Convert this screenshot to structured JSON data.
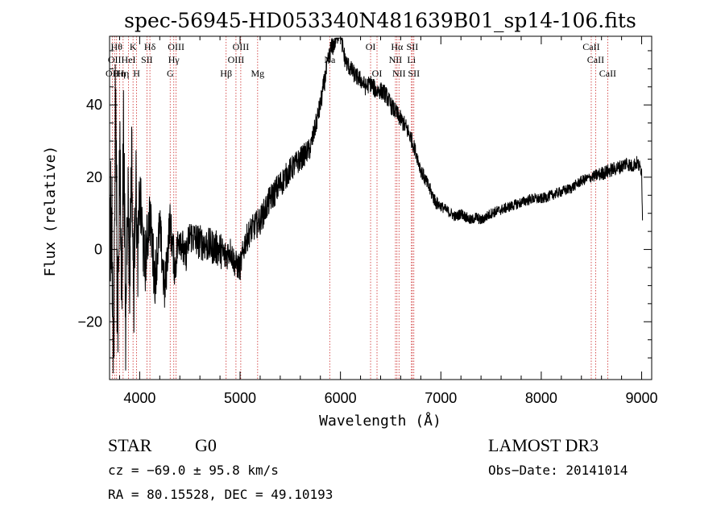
{
  "chart_data": {
    "type": "line",
    "title": "spec-56945-HD053340N481639B01_sp14-106.fits",
    "xlabel": "Wavelength (Å)",
    "ylabel": "Flux (relative)",
    "xlim": [
      3700,
      9100
    ],
    "ylim": [
      -36,
      59
    ],
    "xticks": [
      4000,
      5000,
      6000,
      7000,
      8000,
      9000
    ],
    "xtick_labels": [
      "4000",
      "5000",
      "6000",
      "7000",
      "8000",
      "9000"
    ],
    "yticks": [
      -20,
      0,
      20,
      40
    ],
    "ytick_labels": [
      "−20",
      "0",
      "20",
      "40"
    ],
    "grid": false,
    "series": [
      {
        "name": "flux",
        "x": [
          3700,
          3720,
          3740,
          3760,
          3780,
          3800,
          3820,
          3840,
          3860,
          3880,
          3900,
          3920,
          3940,
          3960,
          3980,
          4000,
          4050,
          4100,
          4150,
          4200,
          4250,
          4300,
          4350,
          4400,
          4450,
          4500,
          4600,
          4700,
          4800,
          4850,
          4900,
          4950,
          5000,
          5050,
          5100,
          5200,
          5300,
          5400,
          5500,
          5600,
          5700,
          5750,
          5800,
          5850,
          5900,
          5950,
          6000,
          6020,
          6050,
          6100,
          6150,
          6200,
          6250,
          6300,
          6350,
          6400,
          6450,
          6500,
          6550,
          6600,
          6650,
          6700,
          6750,
          6800,
          6850,
          6900,
          6950,
          7000,
          7050,
          7100,
          7150,
          7200,
          7250,
          7300,
          7350,
          7400,
          7450,
          7500,
          7600,
          7700,
          7800,
          7900,
          8000,
          8100,
          8200,
          8300,
          8400,
          8500,
          8600,
          8700,
          8800,
          8850,
          8900,
          8950,
          9000,
          9010
        ],
        "y": [
          0,
          12,
          -30,
          45,
          -20,
          25,
          -10,
          35,
          -24,
          20,
          -8,
          28,
          -15,
          22,
          -5,
          15,
          -5,
          10,
          -8,
          6,
          -12,
          8,
          -5,
          5,
          -3,
          4,
          2,
          1,
          0,
          -2,
          0,
          -4,
          -5,
          2,
          5,
          8,
          14,
          18,
          22,
          25,
          28,
          34,
          40,
          48,
          55,
          58,
          62,
          56,
          52,
          50,
          48,
          47,
          45,
          46,
          44,
          44,
          43,
          40,
          38,
          36,
          34,
          31,
          27,
          22,
          19,
          16,
          13,
          12,
          11,
          10,
          9,
          10,
          9,
          8,
          9,
          8,
          9,
          10,
          11,
          12,
          13,
          14,
          14,
          15,
          16,
          17,
          19,
          20,
          21,
          22,
          23,
          24,
          23,
          24,
          22,
          5
        ],
        "noise": [
          18,
          18,
          20,
          20,
          20,
          18,
          18,
          16,
          16,
          14,
          14,
          12,
          12,
          12,
          10,
          10,
          9,
          8,
          8,
          7,
          7,
          6,
          6,
          6,
          5,
          5,
          5,
          5,
          5,
          5,
          4,
          4,
          4,
          4,
          4,
          4,
          4,
          4,
          3.5,
          3.5,
          3,
          3,
          3,
          3,
          3,
          3,
          3,
          3,
          2.5,
          2.5,
          2.5,
          2.5,
          2.5,
          2.5,
          2.5,
          2.5,
          2.5,
          2.5,
          2.5,
          2.5,
          2.5,
          2.5,
          2,
          2,
          2,
          2,
          2,
          1.5,
          1.5,
          1.5,
          1.5,
          1.5,
          1.5,
          1.5,
          1.5,
          1.5,
          1.5,
          1.5,
          1.5,
          1.5,
          1.5,
          1.5,
          1.5,
          1.5,
          1.5,
          1.5,
          1.5,
          1.5,
          2,
          2,
          2,
          2,
          2,
          2,
          2,
          2
        ]
      }
    ],
    "spectral_lines": [
      {
        "wl": 3727,
        "label": "OII",
        "row": 3
      },
      {
        "wl": 3750,
        "label": "OII",
        "row": 2
      },
      {
        "wl": 3770,
        "label": "Hθ",
        "row": 1
      },
      {
        "wl": 3800,
        "label": "Hη",
        "row": 3
      },
      {
        "wl": 3835,
        "label": "Hη",
        "row": 3
      },
      {
        "wl": 3889,
        "label": "HeI",
        "row": 2
      },
      {
        "wl": 3934,
        "label": "K",
        "row": 1
      },
      {
        "wl": 3969,
        "label": "H",
        "row": 3
      },
      {
        "wl": 4072,
        "label": "SII",
        "row": 2
      },
      {
        "wl": 4102,
        "label": "Hδ",
        "row": 1
      },
      {
        "wl": 4304,
        "label": "G",
        "row": 3
      },
      {
        "wl": 4340,
        "label": "Hγ",
        "row": 2
      },
      {
        "wl": 4363,
        "label": "OIII",
        "row": 1
      },
      {
        "wl": 4861,
        "label": "Hβ",
        "row": 3
      },
      {
        "wl": 4959,
        "label": "OIII",
        "row": 2
      },
      {
        "wl": 5007,
        "label": "OIII",
        "row": 1
      },
      {
        "wl": 5175,
        "label": "Mg",
        "row": 3
      },
      {
        "wl": 5893,
        "label": "Na",
        "row": 2
      },
      {
        "wl": 6300,
        "label": "OI",
        "row": 1
      },
      {
        "wl": 6364,
        "label": "OI",
        "row": 3
      },
      {
        "wl": 6548,
        "label": "NII",
        "row": 2
      },
      {
        "wl": 6563,
        "label": "Hα",
        "row": 1
      },
      {
        "wl": 6583,
        "label": "NII",
        "row": 3
      },
      {
        "wl": 6707,
        "label": "Li",
        "row": 2
      },
      {
        "wl": 6716,
        "label": "SII",
        "row": 1
      },
      {
        "wl": 6731,
        "label": "SII",
        "row": 3
      },
      {
        "wl": 8498,
        "label": "CaII",
        "row": 1
      },
      {
        "wl": 8542,
        "label": "CaII",
        "row": 2
      },
      {
        "wl": 8662,
        "label": "CaII",
        "row": 3
      }
    ]
  },
  "info": {
    "class": "STAR",
    "subclass": "G0",
    "survey": "LAMOST DR3",
    "cz": "cz = −69.0 ± 95.8 km/s",
    "obs_date": "Obs−Date: 20141014",
    "coords": "RA =  80.15528, DEC =  49.10193"
  }
}
